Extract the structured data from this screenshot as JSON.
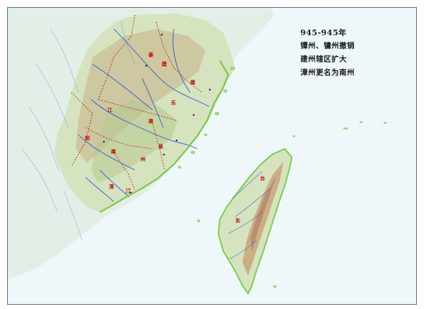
{
  "caption": {
    "year_range": "945-945年",
    "line1": "镡州、镛州撤销",
    "line2": "建州辖区扩大",
    "line3": "漳州更名为南州"
  },
  "place_labels": {
    "a": "泰",
    "b": "建",
    "c": "福",
    "d": "江",
    "e": "乐",
    "f": "南",
    "g": "剑",
    "h": "南",
    "i": "泉",
    "j": "州",
    "k": "漳",
    "l": "汀",
    "m": "台",
    "n": "东"
  },
  "colors": {
    "sea": "#eef8fb",
    "plain": "#d8e6c4",
    "hills": "#b7c98d",
    "mountains": "#c9a57a",
    "rivers": "#3a63d6",
    "coast": "#7fcc4a",
    "boundary": "#b22222"
  }
}
